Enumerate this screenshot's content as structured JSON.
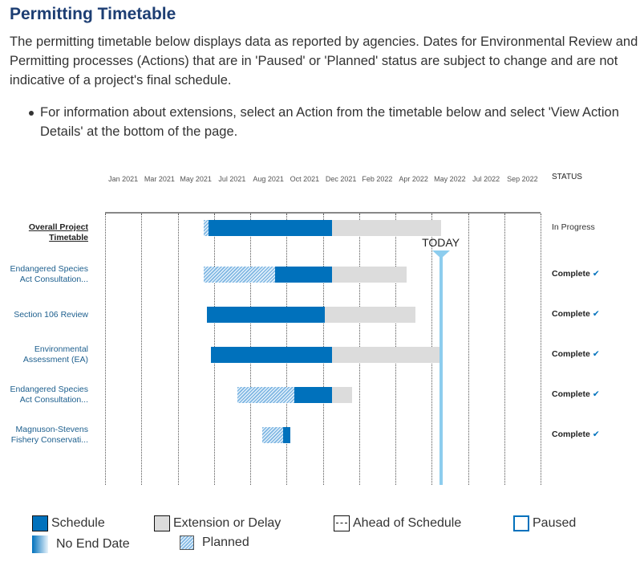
{
  "header": {
    "title": "Permitting Timetable",
    "intro": "The permitting timetable below displays data as reported by agencies. Dates for Environmental Review and Permitting processes (Actions) that are in 'Paused' or 'Planned' status are subject to change and are not indicative of a project's final schedule.",
    "bullet": "For information about extensions, select an Action from the timetable below and select 'View Action Details' at the bottom of the page."
  },
  "colors": {
    "schedule": "#0071bc",
    "extension": "#dcdcdc",
    "planned_stripe": "#7fb6e2",
    "today": "#8dcdee",
    "title": "#1d3e73",
    "link": "#1d5f8e"
  },
  "chart_data": {
    "type": "gantt",
    "title": "Permitting Timetable",
    "status_header": "STATUS",
    "tick_labels": [
      "Jan 2021",
      "Mar 2021",
      "May 2021",
      "Jul 2021",
      "Aug 2021",
      "Oct 2021",
      "Dec 2021",
      "Feb 2022",
      "Apr 2022",
      "May 2022",
      "Jul 2022",
      "Sep 2022"
    ],
    "axis_units": "timeline intervals (0 = Jan 2021 column start, 12 = end of Sep 2022 column)",
    "axis_range": [
      0,
      12
    ],
    "today": {
      "label": "TODAY",
      "position": 9.25
    },
    "rows": [
      {
        "label": "Overall Project Timetable",
        "is_overall": true,
        "status": "In Progress",
        "status_complete": false,
        "segments": [
          {
            "type": "planned",
            "start": 2.72,
            "end": 2.86
          },
          {
            "type": "schedule",
            "start": 2.86,
            "end": 6.26
          },
          {
            "type": "extension",
            "start": 6.26,
            "end": 9.25
          }
        ]
      },
      {
        "label": "Endangered Species Act Consultation...",
        "is_overall": false,
        "status": "Complete",
        "status_complete": true,
        "segments": [
          {
            "type": "planned",
            "start": 2.72,
            "end": 4.69
          },
          {
            "type": "schedule",
            "start": 4.69,
            "end": 6.26
          },
          {
            "type": "extension",
            "start": 6.26,
            "end": 8.3
          }
        ]
      },
      {
        "label": "Section 106 Review",
        "is_overall": false,
        "status": "Complete",
        "status_complete": true,
        "segments": [
          {
            "type": "schedule",
            "start": 2.81,
            "end": 6.06
          },
          {
            "type": "extension",
            "start": 6.06,
            "end": 8.56
          }
        ]
      },
      {
        "label": "Environmental Assessment (EA)",
        "is_overall": false,
        "status": "Complete",
        "status_complete": true,
        "segments": [
          {
            "type": "schedule",
            "start": 2.92,
            "end": 6.26
          },
          {
            "type": "extension",
            "start": 6.26,
            "end": 9.25
          }
        ]
      },
      {
        "label": "Endangered Species Act Consultation...",
        "is_overall": false,
        "status": "Complete",
        "status_complete": true,
        "segments": [
          {
            "type": "planned",
            "start": 3.65,
            "end": 5.22
          },
          {
            "type": "schedule",
            "start": 5.22,
            "end": 6.26
          },
          {
            "type": "extension",
            "start": 6.26,
            "end": 6.81
          }
        ]
      },
      {
        "label": "Magnuson-Stevens Fishery Conservati...",
        "is_overall": false,
        "status": "Complete",
        "status_complete": true,
        "segments": [
          {
            "type": "planned",
            "start": 4.34,
            "end": 4.91
          },
          {
            "type": "schedule",
            "start": 4.91,
            "end": 5.11
          }
        ]
      }
    ],
    "legend": [
      {
        "key": "schedule",
        "label": "Schedule"
      },
      {
        "key": "extension",
        "label": "Extension or Delay"
      },
      {
        "key": "ahead",
        "label": "Ahead of Schedule"
      },
      {
        "key": "paused",
        "label": "Paused"
      },
      {
        "key": "noend",
        "label": "No End Date"
      },
      {
        "key": "planned",
        "label": "Planned"
      }
    ]
  }
}
